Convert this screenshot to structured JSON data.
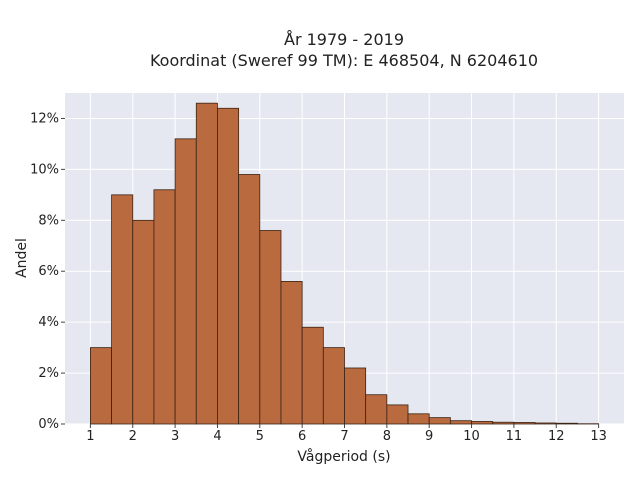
{
  "chart_data": {
    "type": "bar",
    "title_line1": "År 1979 - 2019",
    "title_line2": "Koordinat (Sweref 99 TM): E 468504, N 6204610",
    "xlabel": "Vågperiod (s)",
    "ylabel": "Andel",
    "xlim": [
      0.4,
      13.6
    ],
    "ylim": [
      0,
      0.13
    ],
    "bin_width": 0.5,
    "bins_start": [
      1.0,
      1.5,
      2.0,
      2.5,
      3.0,
      3.5,
      4.0,
      4.5,
      5.0,
      5.5,
      6.0,
      6.5,
      7.0,
      7.5,
      8.0,
      8.5,
      9.0,
      9.5,
      10.0,
      10.5,
      11.0,
      11.5,
      12.0,
      12.5
    ],
    "values": [
      0.03,
      0.09,
      0.08,
      0.092,
      0.112,
      0.126,
      0.124,
      0.098,
      0.076,
      0.056,
      0.038,
      0.03,
      0.022,
      0.0115,
      0.0075,
      0.004,
      0.0025,
      0.0013,
      0.001,
      0.0007,
      0.0006,
      0.0004,
      0.0003,
      0.0001
    ],
    "xticks": [
      1,
      2,
      3,
      4,
      5,
      6,
      7,
      8,
      9,
      10,
      11,
      12,
      13
    ],
    "yticks": [
      0,
      0.02,
      0.04,
      0.06,
      0.08,
      0.1,
      0.12
    ],
    "ytick_labels": [
      "0%",
      "2%",
      "4%",
      "6%",
      "8%",
      "10%",
      "12%"
    ],
    "grid": true,
    "colors": {
      "bar_fill": "#b96a3f",
      "bar_edge": "#3b2315",
      "plot_bg": "#e5e8f0",
      "grid": "#ffffff"
    }
  }
}
